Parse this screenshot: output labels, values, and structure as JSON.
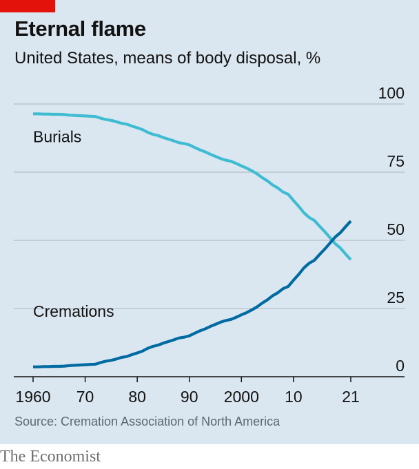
{
  "header": {
    "title": "Eternal flame",
    "subtitle": "United States, means of body disposal, %"
  },
  "footer": {
    "source": "Source: Cremation Association of North America",
    "brand": "The Economist"
  },
  "colors": {
    "accent": "#e3120b",
    "burials": "#3ebcd2",
    "cremations": "#006ba2",
    "background": "#dbe7f0",
    "gridline": "#a8b3bb"
  },
  "chart_data": {
    "type": "line",
    "title": "Eternal flame",
    "subtitle": "United States, means of body disposal, %",
    "xlim": [
      1960,
      2021
    ],
    "ylim": [
      0,
      100
    ],
    "x_ticks": [
      1960,
      1970,
      1980,
      1990,
      2000,
      2010,
      2021
    ],
    "x_tick_labels": [
      "1960",
      "70",
      "80",
      "90",
      "2000",
      "10",
      "21"
    ],
    "y_ticks": [
      0,
      25,
      50,
      75,
      100
    ],
    "y_tick_labels": [
      "0",
      "25",
      "50",
      "75",
      "100"
    ],
    "y_axis_side": "right",
    "grid": true,
    "x": [
      1960,
      1961,
      1962,
      1963,
      1964,
      1965,
      1966,
      1967,
      1968,
      1969,
      1970,
      1971,
      1972,
      1973,
      1974,
      1975,
      1976,
      1977,
      1978,
      1979,
      1980,
      1981,
      1982,
      1983,
      1984,
      1985,
      1986,
      1987,
      1988,
      1989,
      1990,
      1991,
      1992,
      1993,
      1994,
      1995,
      1996,
      1997,
      1998,
      1999,
      2000,
      2001,
      2002,
      2003,
      2004,
      2005,
      2006,
      2007,
      2008,
      2009,
      2010,
      2011,
      2012,
      2013,
      2014,
      2015,
      2016,
      2017,
      2018,
      2019,
      2020,
      2021
    ],
    "series": [
      {
        "name": "Burials",
        "values": [
          96.4,
          96.4,
          96.3,
          96.3,
          96.2,
          96.2,
          96.1,
          95.9,
          95.8,
          95.7,
          95.6,
          95.5,
          95.4,
          94.8,
          94.3,
          94.0,
          93.5,
          92.9,
          92.6,
          91.9,
          91.3,
          90.6,
          89.6,
          88.9,
          88.4,
          87.7,
          87.1,
          86.5,
          85.8,
          85.5,
          85.0,
          84.1,
          83.2,
          82.5,
          81.6,
          80.8,
          80.0,
          79.4,
          79.0,
          78.2,
          77.3,
          76.5,
          75.5,
          74.4,
          73.0,
          71.8,
          70.3,
          69.2,
          67.7,
          66.9,
          64.6,
          62.5,
          60.1,
          58.4,
          57.3,
          55.2,
          53.2,
          51.0,
          48.8,
          47.2,
          45.0,
          42.9
        ]
      },
      {
        "name": "Cremations",
        "values": [
          3.6,
          3.6,
          3.7,
          3.7,
          3.8,
          3.8,
          3.9,
          4.1,
          4.2,
          4.3,
          4.4,
          4.5,
          4.6,
          5.2,
          5.7,
          6.0,
          6.5,
          7.1,
          7.4,
          8.1,
          8.7,
          9.4,
          10.4,
          11.1,
          11.6,
          12.3,
          12.9,
          13.5,
          14.2,
          14.5,
          15.0,
          15.9,
          16.8,
          17.5,
          18.4,
          19.2,
          20.0,
          20.6,
          21.0,
          21.8,
          22.7,
          23.5,
          24.5,
          25.6,
          27.0,
          28.2,
          29.7,
          30.8,
          32.3,
          33.1,
          35.4,
          37.5,
          39.9,
          41.6,
          42.7,
          44.8,
          46.8,
          49.0,
          51.2,
          52.8,
          55.0,
          57.1
        ]
      }
    ]
  }
}
